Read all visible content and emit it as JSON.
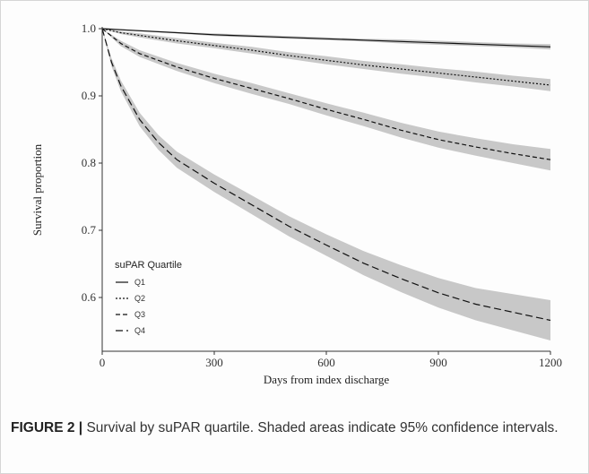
{
  "chart_data": {
    "type": "line",
    "xlabel": "Days from index discharge",
    "ylabel": "Survival proportion",
    "xlim": [
      0,
      1200
    ],
    "ylim": [
      0.52,
      1.0
    ],
    "x_ticks": [
      0,
      300,
      600,
      900,
      1200
    ],
    "x_tick_labels": [
      "0",
      "300",
      "600",
      "900",
      "1200"
    ],
    "y_ticks": [
      0.6,
      0.7,
      0.8,
      0.9,
      1.0
    ],
    "y_tick_labels": [
      "0.6",
      "0.7",
      "0.8",
      "0.9",
      "1.0"
    ],
    "grid": false,
    "confidence_band_color": "#c8c8c8",
    "line_color": "#111111",
    "legend": {
      "title": "suPAR Quartile",
      "placement": "bottom-left",
      "entries": [
        "Q1",
        "Q2",
        "Q3",
        "Q4"
      ]
    },
    "series": [
      {
        "name": "Q1",
        "dash": "solid",
        "x": [
          0,
          100,
          200,
          300,
          400,
          500,
          600,
          700,
          800,
          900,
          1000,
          1100,
          1200
        ],
        "values": [
          1.0,
          0.997,
          0.994,
          0.991,
          0.989,
          0.987,
          0.985,
          0.983,
          0.981,
          0.979,
          0.977,
          0.975,
          0.973
        ],
        "ci_half_width": [
          0,
          0.001,
          0.001,
          0.002,
          0.002,
          0.002,
          0.002,
          0.002,
          0.003,
          0.003,
          0.003,
          0.003,
          0.004
        ]
      },
      {
        "name": "Q2",
        "dash": "dotted",
        "x": [
          0,
          50,
          100,
          200,
          300,
          400,
          500,
          600,
          700,
          800,
          900,
          1000,
          1100,
          1200
        ],
        "values": [
          1.0,
          0.994,
          0.99,
          0.982,
          0.975,
          0.968,
          0.96,
          0.953,
          0.946,
          0.94,
          0.934,
          0.928,
          0.922,
          0.916
        ],
        "ci_half_width": [
          0,
          0.002,
          0.003,
          0.004,
          0.004,
          0.005,
          0.005,
          0.006,
          0.006,
          0.007,
          0.007,
          0.008,
          0.008,
          0.009
        ]
      },
      {
        "name": "Q3",
        "dash": "dashed",
        "x": [
          0,
          50,
          100,
          200,
          300,
          400,
          500,
          600,
          700,
          800,
          900,
          1000,
          1100,
          1200
        ],
        "values": [
          1.0,
          0.978,
          0.963,
          0.943,
          0.926,
          0.911,
          0.896,
          0.88,
          0.865,
          0.849,
          0.835,
          0.824,
          0.814,
          0.805
        ],
        "ci_half_width": [
          0,
          0.004,
          0.005,
          0.006,
          0.007,
          0.008,
          0.008,
          0.009,
          0.01,
          0.011,
          0.012,
          0.013,
          0.014,
          0.016
        ]
      },
      {
        "name": "Q4",
        "dash": "long-dashed",
        "x": [
          0,
          25,
          50,
          100,
          150,
          200,
          300,
          400,
          500,
          600,
          700,
          800,
          900,
          1000,
          1100,
          1200
        ],
        "values": [
          1.0,
          0.95,
          0.915,
          0.865,
          0.831,
          0.805,
          0.77,
          0.738,
          0.706,
          0.678,
          0.651,
          0.628,
          0.607,
          0.59,
          0.578,
          0.566
        ],
        "ci_half_width": [
          0,
          0.006,
          0.008,
          0.01,
          0.011,
          0.012,
          0.013,
          0.014,
          0.015,
          0.016,
          0.018,
          0.02,
          0.022,
          0.024,
          0.027,
          0.03
        ]
      }
    ]
  },
  "caption": {
    "label": "FIGURE 2 |",
    "text": " Survival by suPAR quartile. Shaded areas indicate 95% confidence intervals."
  }
}
